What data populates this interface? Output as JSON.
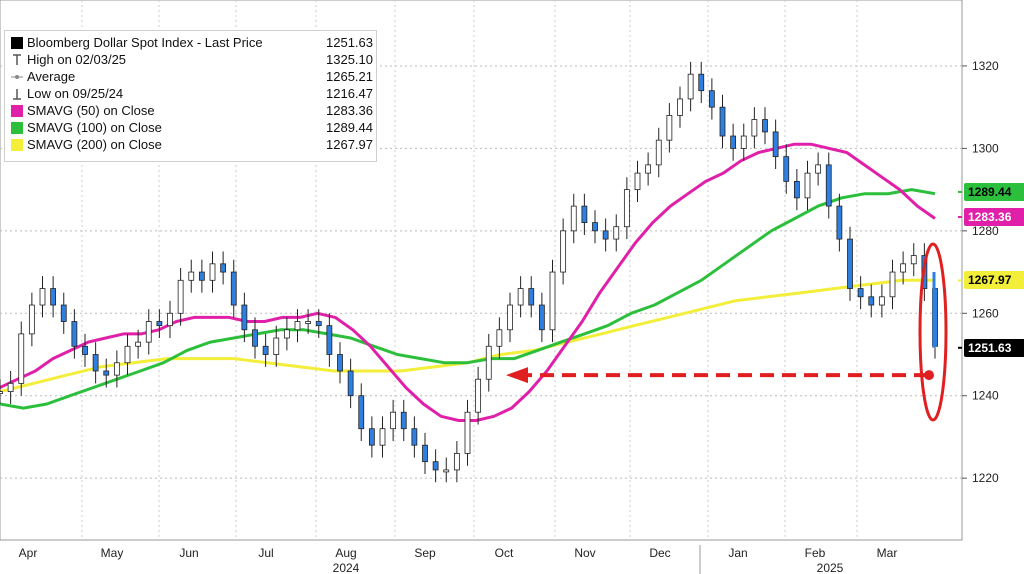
{
  "chart_data": {
    "type": "line",
    "title": "Bloomberg Dollar Spot Index - Last Price",
    "ylim": [
      1205,
      1336
    ],
    "yticks": [
      1220,
      1240,
      1260,
      1280,
      1300,
      1320
    ],
    "months": [
      "Apr",
      "May",
      "Jun",
      "Jul",
      "Aug",
      "Sep",
      "Oct",
      "Nov",
      "Dec",
      "Jan",
      "Feb",
      "Mar"
    ],
    "years": [
      "2024",
      "2025"
    ],
    "legend": [
      {
        "label": "Bloomberg Dollar Spot Index - Last Price",
        "value": "1251.63",
        "symbol": "box",
        "color": "#000000"
      },
      {
        "label": "High on 02/03/25",
        "value": "1325.10",
        "symbol": "high",
        "color": "#555555"
      },
      {
        "label": "Average",
        "value": "1265.21",
        "symbol": "avg",
        "color": "#777777"
      },
      {
        "label": "Low on 09/25/24",
        "value": "1216.47",
        "symbol": "low",
        "color": "#555555"
      },
      {
        "label": "SMAVG (50)  on Close",
        "value": "1283.36",
        "symbol": "box",
        "color": "#e020a8"
      },
      {
        "label": "SMAVG (100)  on Close",
        "value": "1289.44",
        "symbol": "box",
        "color": "#2cbf3c"
      },
      {
        "label": "SMAVG (200)  on Close",
        "value": "1267.97",
        "symbol": "box",
        "color": "#f2ee3a"
      }
    ],
    "right_tags": [
      {
        "value": "1289.44",
        "y": 1289.44,
        "bg": "#2cbf3c",
        "fg": "#000000"
      },
      {
        "value": "1283.36",
        "y": 1283.36,
        "bg": "#e020a8",
        "fg": "#ffffff"
      },
      {
        "value": "1267.97",
        "y": 1267.97,
        "bg": "#f2ee3a",
        "fg": "#000000"
      },
      {
        "value": "1251.63",
        "y": 1251.63,
        "bg": "#000000",
        "fg": "#ffffff"
      }
    ],
    "price": [
      1241,
      1243,
      1255,
      1262,
      1266,
      1262,
      1258,
      1252,
      1250,
      1246,
      1245,
      1248,
      1252,
      1253,
      1258,
      1257,
      1260,
      1268,
      1270,
      1268,
      1272,
      1270,
      1262,
      1256,
      1252,
      1250,
      1254,
      1256,
      1258,
      1258,
      1257,
      1250,
      1246,
      1240,
      1232,
      1228,
      1232,
      1236,
      1232,
      1228,
      1224,
      1222,
      1222,
      1226,
      1236,
      1244,
      1252,
      1256,
      1262,
      1266,
      1262,
      1256,
      1270,
      1280,
      1286,
      1282,
      1280,
      1278,
      1281,
      1290,
      1294,
      1296,
      1302,
      1308,
      1312,
      1318,
      1314,
      1310,
      1303,
      1300,
      1303,
      1307,
      1304,
      1298,
      1292,
      1288,
      1294,
      1296,
      1286,
      1278,
      1266,
      1264,
      1262,
      1264,
      1270,
      1272,
      1274,
      1266,
      1252
    ],
    "sma50": [
      1242,
      1244,
      1246,
      1249,
      1251,
      1253,
      1254,
      1255,
      1255,
      1256,
      1258,
      1259,
      1259,
      1259,
      1258,
      1258,
      1259,
      1259,
      1260,
      1259,
      1256,
      1252,
      1247,
      1242,
      1238,
      1235,
      1234,
      1234,
      1235,
      1237,
      1241,
      1246,
      1252,
      1258,
      1265,
      1271,
      1277,
      1282,
      1286,
      1289,
      1292,
      1294,
      1297,
      1299,
      1300,
      1301,
      1301,
      1300,
      1299,
      1296,
      1293,
      1290,
      1286,
      1283
    ],
    "sma100": [
      1238,
      1237,
      1238,
      1240,
      1242,
      1244,
      1246,
      1248,
      1251,
      1253,
      1254,
      1255,
      1256,
      1256,
      1255,
      1254,
      1252,
      1250,
      1249,
      1248,
      1248,
      1249,
      1249,
      1251,
      1253,
      1255,
      1257,
      1260,
      1262,
      1265,
      1268,
      1272,
      1276,
      1280,
      1283,
      1286,
      1288,
      1289,
      1289,
      1290,
      1289
    ],
    "sma200": [
      1241,
      1243,
      1245,
      1247,
      1248,
      1249,
      1249,
      1249,
      1248,
      1247,
      1246,
      1246,
      1246,
      1247,
      1248,
      1250,
      1251,
      1253,
      1255,
      1257,
      1259,
      1261,
      1263,
      1264,
      1265,
      1266,
      1267,
      1268,
      1268
    ],
    "arrow": {
      "from_y": 1245,
      "to_y": 1245,
      "color": "#e02020"
    }
  }
}
